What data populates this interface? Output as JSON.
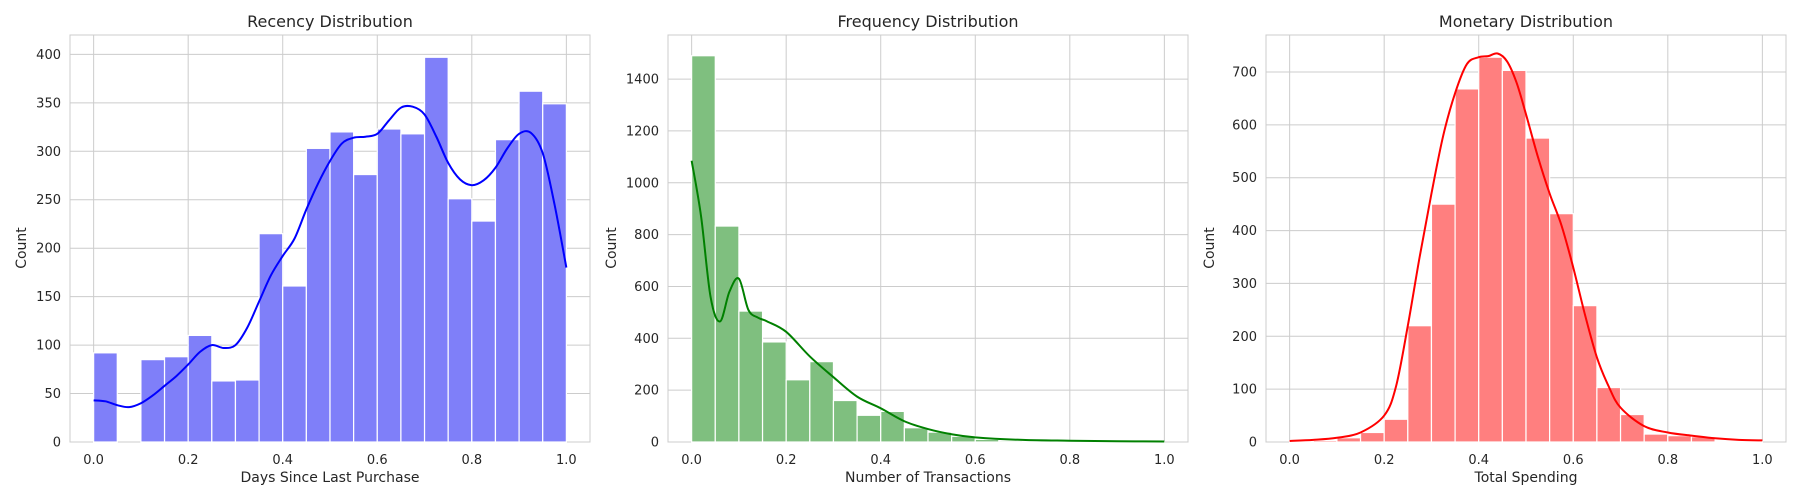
{
  "chart_data": [
    {
      "type": "histogram",
      "title": "Recency Distribution",
      "xlabel": "Days Since Last Purchase",
      "ylabel": "Count",
      "xlim": [
        -0.05,
        1.05
      ],
      "ylim": [
        0,
        420
      ],
      "xticks": [
        "0.0",
        "0.2",
        "0.4",
        "0.6",
        "0.8",
        "1.0"
      ],
      "yticks": [
        "0",
        "50",
        "100",
        "150",
        "200",
        "250",
        "300",
        "350",
        "400"
      ],
      "bin_edges": [
        0.0,
        0.05,
        0.1,
        0.15,
        0.2,
        0.25,
        0.3,
        0.35,
        0.4,
        0.45,
        0.5,
        0.55,
        0.6,
        0.65,
        0.7,
        0.75,
        0.8,
        0.85,
        0.9,
        0.95,
        1.0
      ],
      "counts": [
        92,
        0,
        85,
        88,
        110,
        63,
        64,
        215,
        161,
        303,
        320,
        276,
        323,
        318,
        397,
        251,
        228,
        312,
        362,
        349
      ],
      "kde": {
        "x": [
          0.0,
          0.025,
          0.05,
          0.075,
          0.1,
          0.125,
          0.15,
          0.175,
          0.2,
          0.225,
          0.25,
          0.275,
          0.3,
          0.325,
          0.35,
          0.375,
          0.4,
          0.425,
          0.45,
          0.475,
          0.5,
          0.525,
          0.55,
          0.575,
          0.6,
          0.625,
          0.65,
          0.675,
          0.7,
          0.725,
          0.75,
          0.775,
          0.8,
          0.825,
          0.85,
          0.875,
          0.9,
          0.925,
          0.95,
          0.975,
          1.0
        ],
        "y": [
          43,
          42,
          38,
          36,
          40,
          48,
          58,
          68,
          80,
          93,
          100,
          97,
          100,
          118,
          145,
          172,
          192,
          210,
          240,
          267,
          290,
          308,
          314,
          315,
          318,
          332,
          345,
          346,
          338,
          315,
          288,
          271,
          265,
          270,
          283,
          303,
          318,
          319,
          298,
          245,
          180
        ]
      },
      "color": "#0000ff",
      "bar_color": "#7f7ff9"
    },
    {
      "type": "histogram",
      "title": "Frequency Distribution",
      "xlabel": "Number of Transactions",
      "ylabel": "Count",
      "xlim": [
        -0.05,
        1.05
      ],
      "ylim": [
        0,
        1570
      ],
      "xticks": [
        "0.0",
        "0.2",
        "0.4",
        "0.6",
        "0.8",
        "1.0"
      ],
      "yticks": [
        "0",
        "200",
        "400",
        "600",
        "800",
        "1000",
        "1200",
        "1400"
      ],
      "bin_edges": [
        0.0,
        0.05,
        0.1,
        0.15,
        0.2,
        0.25,
        0.3,
        0.35,
        0.4,
        0.45,
        0.5,
        0.55,
        0.6,
        0.65,
        0.7,
        0.75,
        0.8,
        0.85,
        0.9,
        0.95,
        1.0
      ],
      "counts": [
        1490,
        833,
        505,
        386,
        240,
        310,
        160,
        103,
        118,
        55,
        38,
        22,
        10,
        5,
        4,
        3,
        2,
        2,
        1,
        1
      ],
      "kde": {
        "x": [
          0.0,
          0.02,
          0.04,
          0.06,
          0.08,
          0.1,
          0.12,
          0.14,
          0.16,
          0.2,
          0.25,
          0.3,
          0.35,
          0.4,
          0.45,
          0.5,
          0.55,
          0.6,
          0.7,
          0.8,
          0.9,
          1.0
        ],
        "y": [
          1085,
          870,
          560,
          465,
          580,
          630,
          510,
          480,
          465,
          425,
          330,
          250,
          175,
          130,
          80,
          50,
          30,
          18,
          8,
          5,
          3,
          2
        ]
      },
      "color": "#008000",
      "bar_color": "#7fbf7f"
    },
    {
      "type": "histogram",
      "title": "Monetary Distribution",
      "xlabel": "Total Spending",
      "ylabel": "Count",
      "xlim": [
        -0.05,
        1.05
      ],
      "ylim": [
        0,
        770
      ],
      "xticks": [
        "0.0",
        "0.2",
        "0.4",
        "0.6",
        "0.8",
        "1.0"
      ],
      "yticks": [
        "0",
        "100",
        "200",
        "300",
        "400",
        "500",
        "600",
        "700"
      ],
      "bin_edges": [
        0.0,
        0.05,
        0.1,
        0.15,
        0.2,
        0.25,
        0.3,
        0.35,
        0.4,
        0.45,
        0.5,
        0.55,
        0.6,
        0.65,
        0.7,
        0.75,
        0.8,
        0.85,
        0.9,
        0.95,
        1.0
      ],
      "counts": [
        2,
        3,
        8,
        18,
        43,
        220,
        450,
        668,
        728,
        703,
        575,
        432,
        258,
        103,
        52,
        15,
        12,
        10,
        2,
        1
      ],
      "kde": {
        "x": [
          0.0,
          0.05,
          0.1,
          0.15,
          0.2,
          0.225,
          0.25,
          0.275,
          0.3,
          0.325,
          0.35,
          0.375,
          0.4,
          0.42,
          0.44,
          0.46,
          0.48,
          0.5,
          0.525,
          0.55,
          0.575,
          0.6,
          0.625,
          0.65,
          0.675,
          0.7,
          0.75,
          0.8,
          0.85,
          0.9,
          0.95,
          1.0
        ],
        "y": [
          2,
          4,
          8,
          18,
          50,
          105,
          220,
          350,
          470,
          580,
          660,
          715,
          728,
          730,
          735,
          720,
          680,
          620,
          540,
          470,
          410,
          330,
          240,
          160,
          105,
          65,
          30,
          18,
          12,
          7,
          4,
          3
        ]
      },
      "color": "#ff0000",
      "bar_color": "#ff7f7f"
    }
  ]
}
